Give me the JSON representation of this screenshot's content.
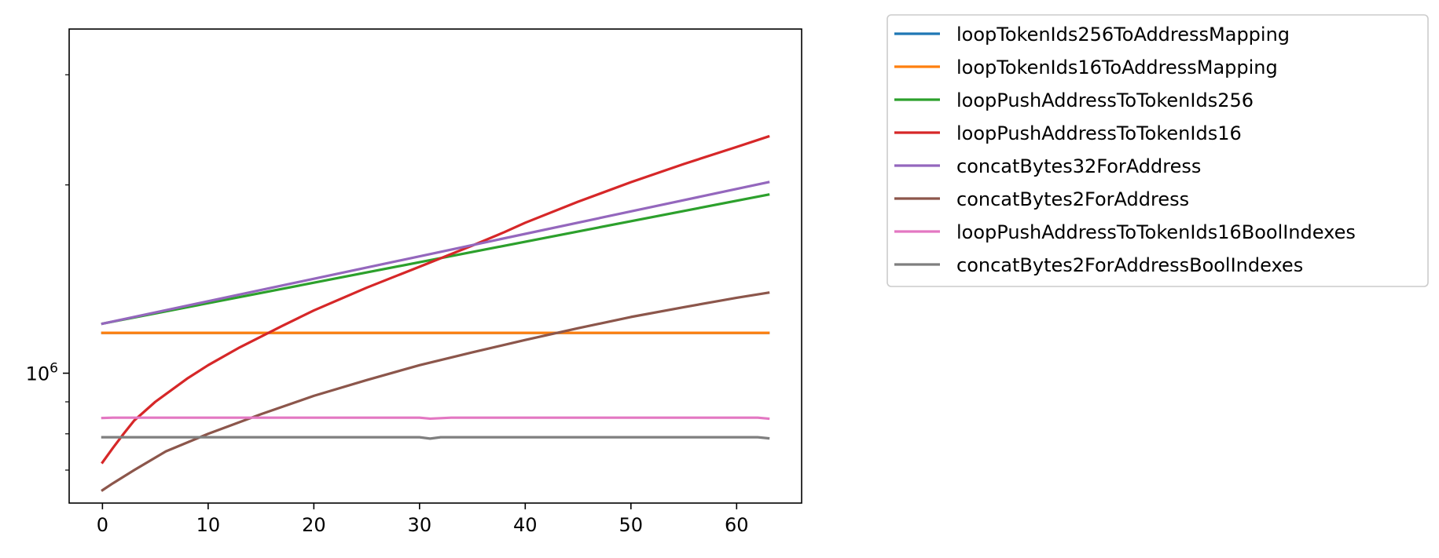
{
  "chart_data": {
    "type": "line",
    "title": "",
    "xlabel": "",
    "ylabel": "",
    "xlim": [
      -3.15,
      66.15
    ],
    "ylim": [
      620000,
      3550000
    ],
    "yscale": "log",
    "x_ticks": [
      0,
      10,
      20,
      30,
      40,
      50,
      60
    ],
    "y_major_ticks": [
      {
        "value": 1000000,
        "base": "10",
        "exponent": "6"
      }
    ],
    "y_minor_ticks": [
      700000,
      800000,
      900000,
      2000000,
      3000000
    ],
    "legend_position": "outside-right-top",
    "series": [
      {
        "name": "loopTokenIds256ToAddressMapping",
        "color": "#1f77b4",
        "points": [
          [
            0,
            1160000
          ],
          [
            63,
            1160000
          ]
        ]
      },
      {
        "name": "loopTokenIds16ToAddressMapping",
        "color": "#ff7f0e",
        "points": [
          [
            0,
            1160000
          ],
          [
            63,
            1160000
          ]
        ]
      },
      {
        "name": "loopPushAddressToTokenIds256",
        "color": "#2ca02c",
        "points": [
          [
            0,
            1200000
          ],
          [
            63,
            1930000
          ]
        ]
      },
      {
        "name": "loopPushAddressToTokenIds16",
        "color": "#d62728",
        "points": [
          [
            0,
            720000
          ],
          [
            1,
            760000
          ],
          [
            2,
            800000
          ],
          [
            3,
            840000
          ],
          [
            5,
            900000
          ],
          [
            8,
            980000
          ],
          [
            10,
            1030000
          ],
          [
            13,
            1100000
          ],
          [
            17,
            1190000
          ],
          [
            20,
            1260000
          ],
          [
            25,
            1370000
          ],
          [
            30,
            1480000
          ],
          [
            35,
            1600000
          ],
          [
            38,
            1680000
          ],
          [
            40,
            1740000
          ],
          [
            45,
            1880000
          ],
          [
            50,
            2020000
          ],
          [
            55,
            2160000
          ],
          [
            60,
            2300000
          ],
          [
            63,
            2390000
          ]
        ]
      },
      {
        "name": "concatBytes32ForAddress",
        "color": "#9467bd",
        "points": [
          [
            0,
            1200000
          ],
          [
            63,
            2020000
          ]
        ]
      },
      {
        "name": "concatBytes2ForAddress",
        "color": "#8c564b",
        "points": [
          [
            0,
            650000
          ],
          [
            1,
            667000
          ],
          [
            3,
            700000
          ],
          [
            6,
            750000
          ],
          [
            10,
            800000
          ],
          [
            15,
            860000
          ],
          [
            20,
            920000
          ],
          [
            25,
            975000
          ],
          [
            30,
            1030000
          ],
          [
            35,
            1080000
          ],
          [
            40,
            1130000
          ],
          [
            45,
            1180000
          ],
          [
            50,
            1230000
          ],
          [
            55,
            1275000
          ],
          [
            60,
            1320000
          ],
          [
            63,
            1345000
          ]
        ]
      },
      {
        "name": "loopPushAddressToTokenIds16BoolIndexes",
        "color": "#e377c2",
        "points": [
          [
            0,
            848000
          ],
          [
            1,
            849000
          ],
          [
            30,
            849000
          ],
          [
            31,
            846000
          ],
          [
            33,
            849000
          ],
          [
            62,
            849000
          ],
          [
            63,
            846000
          ]
        ]
      },
      {
        "name": "concatBytes2ForAddressBoolIndexes",
        "color": "#7f7f7f",
        "points": [
          [
            0,
            790000
          ],
          [
            30,
            790000
          ],
          [
            31,
            786000
          ],
          [
            32,
            790000
          ],
          [
            62,
            790000
          ],
          [
            63,
            787000
          ]
        ]
      }
    ]
  }
}
